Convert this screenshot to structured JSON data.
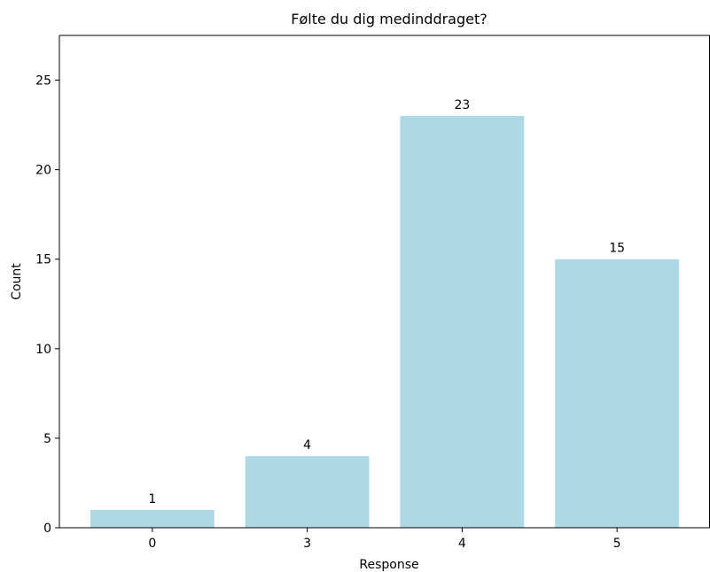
{
  "chart_data": {
    "type": "bar",
    "title": "Følte du dig medinddraget?",
    "xlabel": "Response",
    "ylabel": "Count",
    "categories": [
      "0",
      "3",
      "4",
      "5"
    ],
    "values": [
      1,
      4,
      23,
      15
    ],
    "data_labels": [
      "1",
      "4",
      "23",
      "15"
    ],
    "y_ticks": [
      0,
      5,
      10,
      15,
      20,
      25
    ],
    "ylim": [
      0,
      27.5
    ],
    "grid": false,
    "bar_color": "#add8e6"
  }
}
